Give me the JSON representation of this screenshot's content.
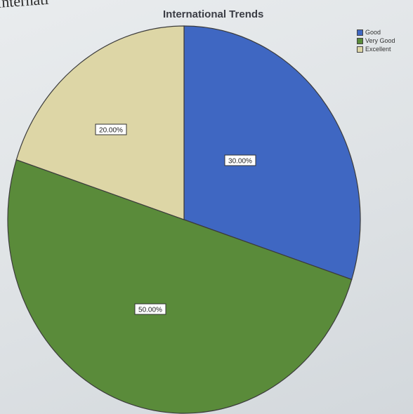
{
  "heading_partial": "Internati",
  "chart_data": {
    "type": "pie",
    "title": "International Trends",
    "legend_position": "top-right",
    "slices": [
      {
        "label": "Good",
        "value": 30,
        "display": "30.00%",
        "color": "#3f67c2"
      },
      {
        "label": "Very Good",
        "value": 50,
        "display": "50.00%",
        "color": "#5a8b3a"
      },
      {
        "label": "Excellent",
        "value": 20,
        "display": "20.00%",
        "color": "#ddd6a6"
      }
    ]
  }
}
